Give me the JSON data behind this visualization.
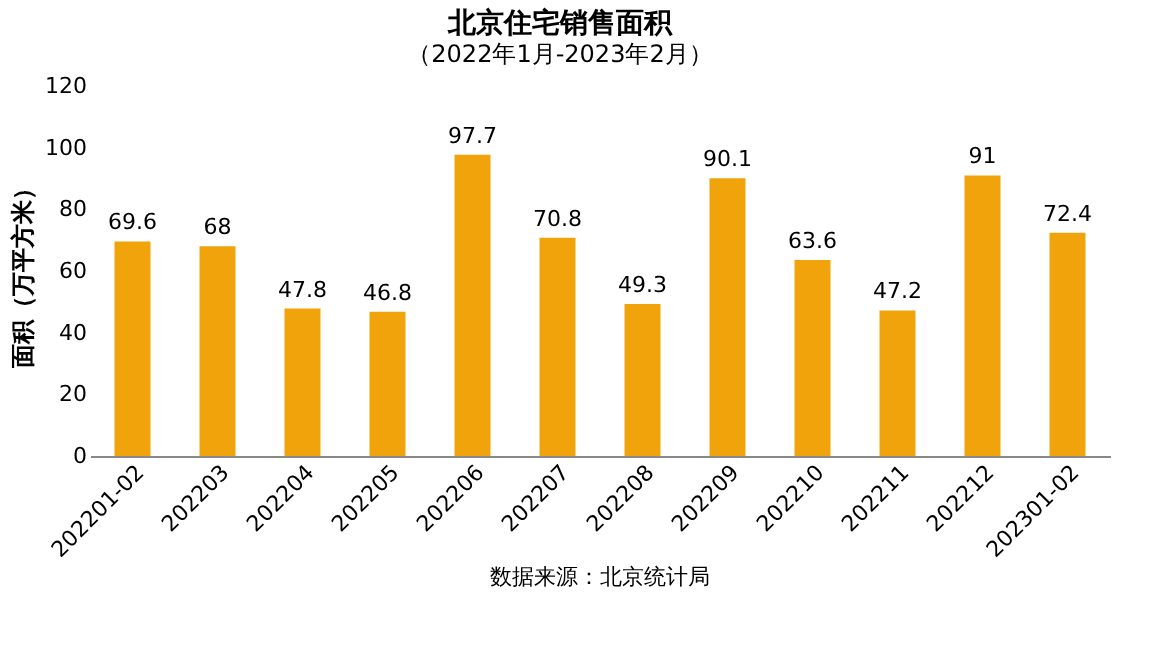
{
  "chart_data": {
    "type": "bar",
    "title": "北京住宅销售面积",
    "subtitle": "（2022年1月-2023年2月）",
    "ylabel": "面积（万平方米）",
    "categories": [
      "202201-02",
      "202203",
      "202204",
      "202205",
      "202206",
      "202207",
      "202208",
      "202209",
      "202210",
      "202211",
      "202212",
      "202301-02"
    ],
    "values": [
      69.6,
      68,
      47.8,
      46.8,
      97.7,
      70.8,
      49.3,
      90.1,
      63.6,
      47.2,
      91,
      72.4
    ],
    "color": "#f0a30a",
    "ylim": [
      0,
      120
    ],
    "yticks": [
      0,
      20,
      40,
      60,
      80,
      100,
      120
    ],
    "grid": false,
    "data_labels": true,
    "annotations": [
      "数据来源：北京统计局"
    ]
  }
}
